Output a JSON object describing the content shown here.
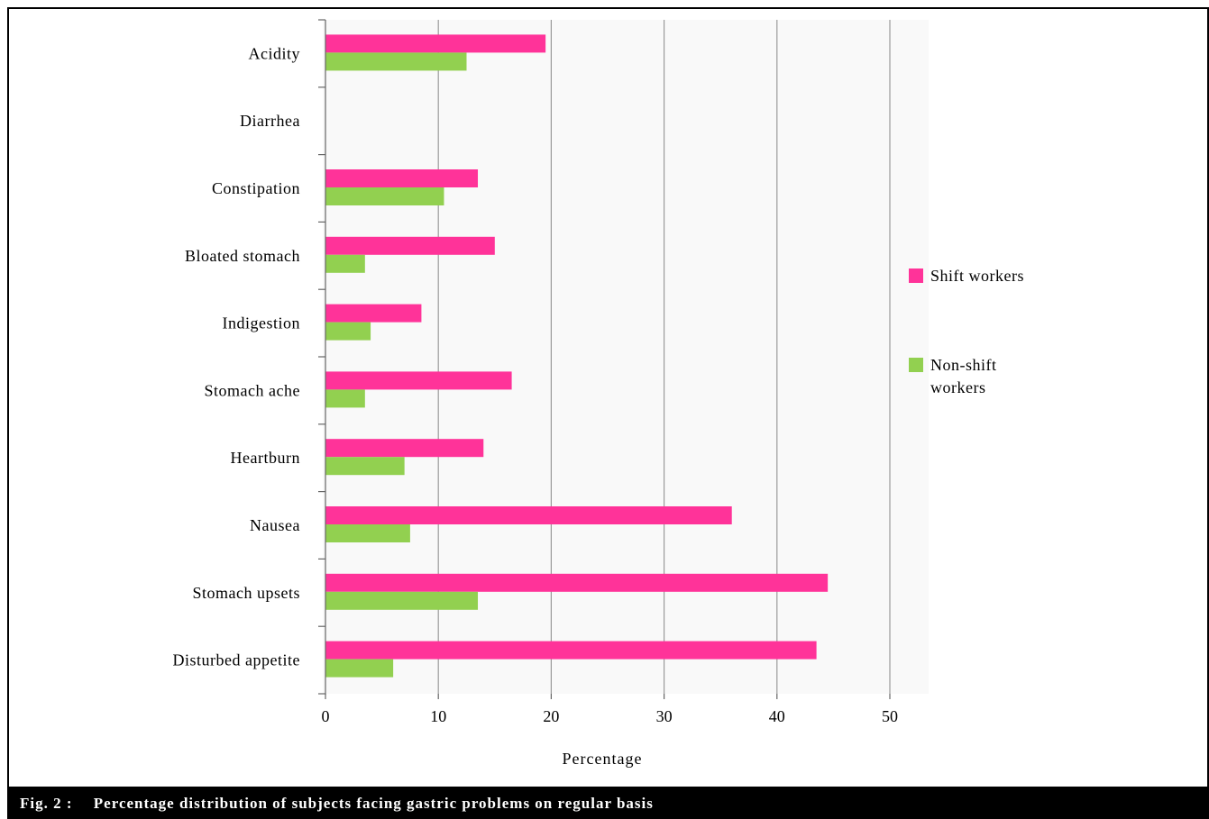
{
  "caption": {
    "label": "Fig. 2 :",
    "text": "Percentage distribution of subjects facing gastric problems on regular basis"
  },
  "chart_data": {
    "type": "bar",
    "orientation": "horizontal",
    "categories": [
      "Acidity",
      "Diarrhea",
      "Constipation",
      "Bloated stomach",
      "Indigestion",
      "Stomach ache",
      "Heartburn",
      "Nausea",
      "Stomach upsets",
      "Disturbed appetite"
    ],
    "series": [
      {
        "name": "Shift workers",
        "color": "#ff3399",
        "values": [
          19.5,
          0,
          13.5,
          15,
          8.5,
          16.5,
          14,
          36,
          44.5,
          43.5
        ]
      },
      {
        "name": "Non-shift workers",
        "color": "#92d050",
        "values": [
          12.5,
          0,
          10.5,
          3.5,
          4,
          3.5,
          7,
          7.5,
          13.5,
          6
        ]
      }
    ],
    "xlim": [
      0,
      50
    ],
    "xticks": [
      0,
      10,
      20,
      30,
      40,
      50
    ],
    "xlabel": "Percentage",
    "ylabel": "",
    "grid": "vertical",
    "legend_position": "right"
  }
}
